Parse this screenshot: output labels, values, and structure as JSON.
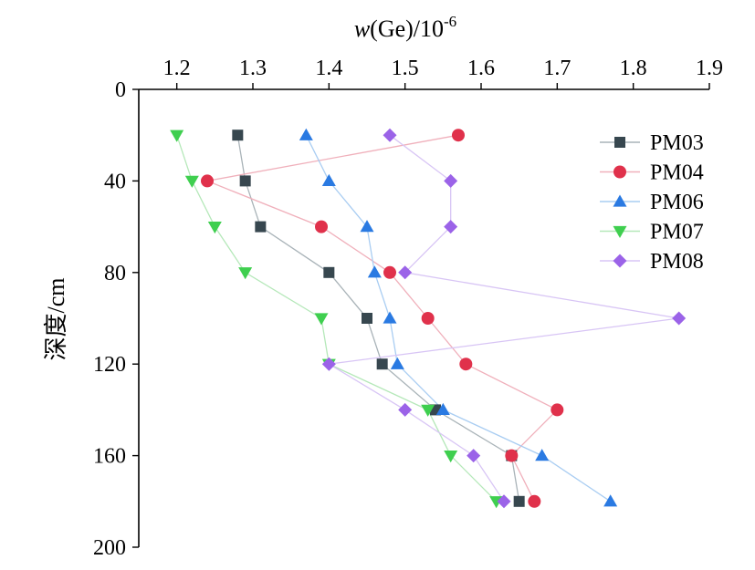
{
  "chart_data": {
    "type": "scatter",
    "xlabel": {
      "italic": "w",
      "rest": "(Ge)/10",
      "sup": "-6"
    },
    "ylabel": "深度/cm",
    "xlim": [
      1.15,
      1.9
    ],
    "ylim": [
      0,
      200
    ],
    "x_ticks": [
      1.2,
      1.3,
      1.4,
      1.5,
      1.6,
      1.7,
      1.8,
      1.9
    ],
    "y_ticks": [
      0,
      40,
      80,
      120,
      160,
      200
    ],
    "x_axis_position": "top",
    "y_inverted": true,
    "grid": false,
    "legend_position": "top-right",
    "series": [
      {
        "name": "PM03",
        "marker": "square",
        "color": "#37474f",
        "line_color": "#a9b3b8",
        "x": [
          1.28,
          1.29,
          1.31,
          1.4,
          1.45,
          1.47,
          1.54,
          1.64,
          1.65
        ],
        "y": [
          20,
          40,
          60,
          80,
          100,
          120,
          140,
          160,
          180
        ]
      },
      {
        "name": "PM04",
        "marker": "circle",
        "color": "#e0314b",
        "line_color": "#f0b0bb",
        "x": [
          1.57,
          1.24,
          1.39,
          1.48,
          1.53,
          1.58,
          1.7,
          1.64,
          1.67
        ],
        "y": [
          20,
          40,
          60,
          80,
          100,
          120,
          140,
          160,
          180
        ]
      },
      {
        "name": "PM06",
        "marker": "triangle-up",
        "color": "#2a7ae2",
        "line_color": "#a9cdf2",
        "x": [
          1.37,
          1.4,
          1.45,
          1.46,
          1.48,
          1.49,
          1.55,
          1.68,
          1.77
        ],
        "y": [
          20,
          40,
          60,
          80,
          100,
          120,
          140,
          160,
          180
        ]
      },
      {
        "name": "PM07",
        "marker": "triangle-down",
        "color": "#3fcf4f",
        "line_color": "#b5e8b9",
        "x": [
          1.2,
          1.22,
          1.25,
          1.29,
          1.39,
          1.4,
          1.53,
          1.56,
          1.62
        ],
        "y": [
          20,
          40,
          60,
          80,
          100,
          120,
          140,
          160,
          180
        ]
      },
      {
        "name": "PM08",
        "marker": "diamond",
        "color": "#9b63e8",
        "line_color": "#d8c5f5",
        "x": [
          1.48,
          1.56,
          1.56,
          1.5,
          1.86,
          1.4,
          1.5,
          1.59,
          1.63
        ],
        "y": [
          20,
          40,
          60,
          80,
          100,
          120,
          140,
          160,
          180
        ]
      }
    ]
  }
}
